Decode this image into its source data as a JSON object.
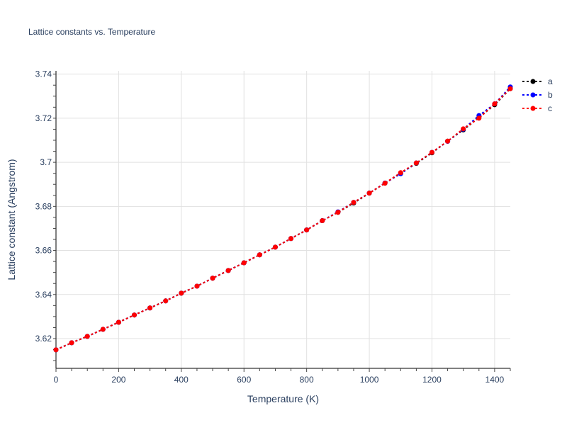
{
  "chart_data": {
    "type": "line",
    "title": "Lattice constants vs. Temperature",
    "xlabel": "Temperature (K)",
    "ylabel": "Lattice constant (Angstrom)",
    "xlim": [
      0,
      1450
    ],
    "ylim": [
      3.6065,
      3.7415
    ],
    "x_ticks": [
      0,
      200,
      400,
      600,
      800,
      1000,
      1200,
      1400
    ],
    "y_ticks": [
      3.62,
      3.64,
      3.66,
      3.68,
      3.7,
      3.72,
      3.74
    ],
    "y_tick_labels": [
      "3.62",
      "3.64",
      "3.66",
      "3.68",
      "3.7",
      "3.72",
      "3.74"
    ],
    "grid": true,
    "legend_position": "right-top",
    "x": [
      0,
      50,
      100,
      150,
      200,
      250,
      300,
      350,
      400,
      450,
      500,
      550,
      600,
      650,
      700,
      750,
      800,
      850,
      900,
      950,
      1000,
      1050,
      1100,
      1150,
      1200,
      1250,
      1300,
      1350,
      1400,
      1450
    ],
    "series": [
      {
        "name": "a",
        "color": "#000000",
        "values": [
          3.6149,
          3.6181,
          3.621,
          3.6242,
          3.6274,
          3.6307,
          3.6339,
          3.6371,
          3.6406,
          3.6438,
          3.6474,
          3.6509,
          3.6544,
          3.658,
          3.6615,
          3.6654,
          3.6693,
          3.6735,
          3.6773,
          3.6815,
          3.686,
          3.6905,
          3.695,
          3.6995,
          3.7043,
          3.7096,
          3.7147,
          3.7203,
          3.7261,
          3.7334
        ]
      },
      {
        "name": "b",
        "color": "#0000ff",
        "values": [
          3.6149,
          3.6181,
          3.621,
          3.6242,
          3.6274,
          3.6307,
          3.6339,
          3.6371,
          3.6406,
          3.6438,
          3.6474,
          3.6509,
          3.6544,
          3.658,
          3.6615,
          3.6654,
          3.6693,
          3.6735,
          3.6775,
          3.6818,
          3.686,
          3.6906,
          3.6948,
          3.6997,
          3.7045,
          3.7095,
          3.715,
          3.7212,
          3.7265,
          3.7342
        ]
      },
      {
        "name": "c",
        "color": "#ff0000",
        "values": [
          3.6149,
          3.6181,
          3.621,
          3.6242,
          3.6274,
          3.6307,
          3.6339,
          3.6371,
          3.6406,
          3.6438,
          3.6474,
          3.6509,
          3.6544,
          3.658,
          3.6615,
          3.6654,
          3.6693,
          3.6735,
          3.6773,
          3.6818,
          3.686,
          3.6905,
          3.6953,
          3.6997,
          3.7045,
          3.7096,
          3.7152,
          3.72,
          3.7265,
          3.7334
        ]
      }
    ]
  }
}
